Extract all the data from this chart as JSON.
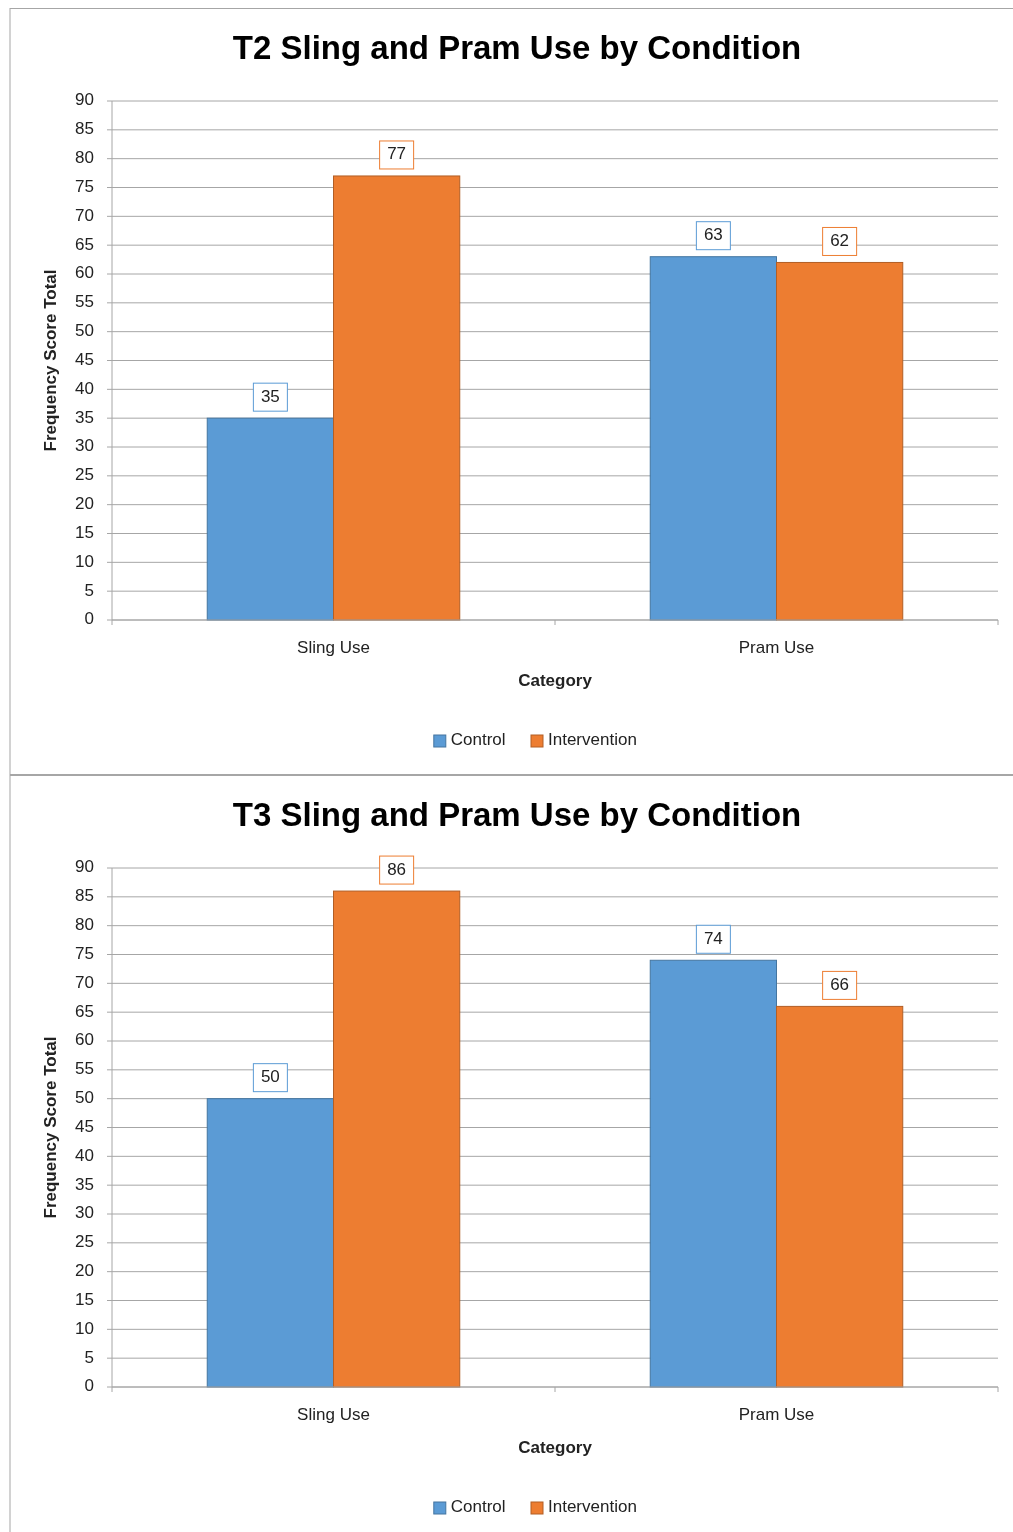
{
  "chart_data": [
    {
      "type": "bar",
      "title": "T2 Sling and Pram Use by Condition",
      "xlabel": "Category",
      "ylabel": "Frequency Score Total",
      "categories": [
        "Sling Use",
        "Pram Use"
      ],
      "series": [
        {
          "name": "Control",
          "color": "#5b9bd5",
          "values": [
            35,
            63
          ]
        },
        {
          "name": "Intervention",
          "color": "#ed7d31",
          "values": [
            77,
            62
          ]
        }
      ],
      "ylim": [
        0,
        90
      ],
      "yticks": [
        0,
        5,
        10,
        15,
        20,
        25,
        30,
        35,
        40,
        45,
        50,
        55,
        60,
        65,
        70,
        75,
        80,
        85,
        90
      ],
      "grid": "y",
      "legend": "bottom",
      "data_labels": true
    },
    {
      "type": "bar",
      "title": "T3 Sling and Pram Use by Condition",
      "xlabel": "Category",
      "ylabel": "Frequency Score Total",
      "categories": [
        "Sling Use",
        "Pram Use"
      ],
      "series": [
        {
          "name": "Control",
          "color": "#5b9bd5",
          "values": [
            50,
            74
          ]
        },
        {
          "name": "Intervention",
          "color": "#ed7d31",
          "values": [
            86,
            66
          ]
        }
      ],
      "ylim": [
        0,
        90
      ],
      "yticks": [
        0,
        5,
        10,
        15,
        20,
        25,
        30,
        35,
        40,
        45,
        50,
        55,
        60,
        65,
        70,
        75,
        80,
        85,
        90
      ],
      "grid": "y",
      "legend": "bottom",
      "data_labels": true
    }
  ]
}
